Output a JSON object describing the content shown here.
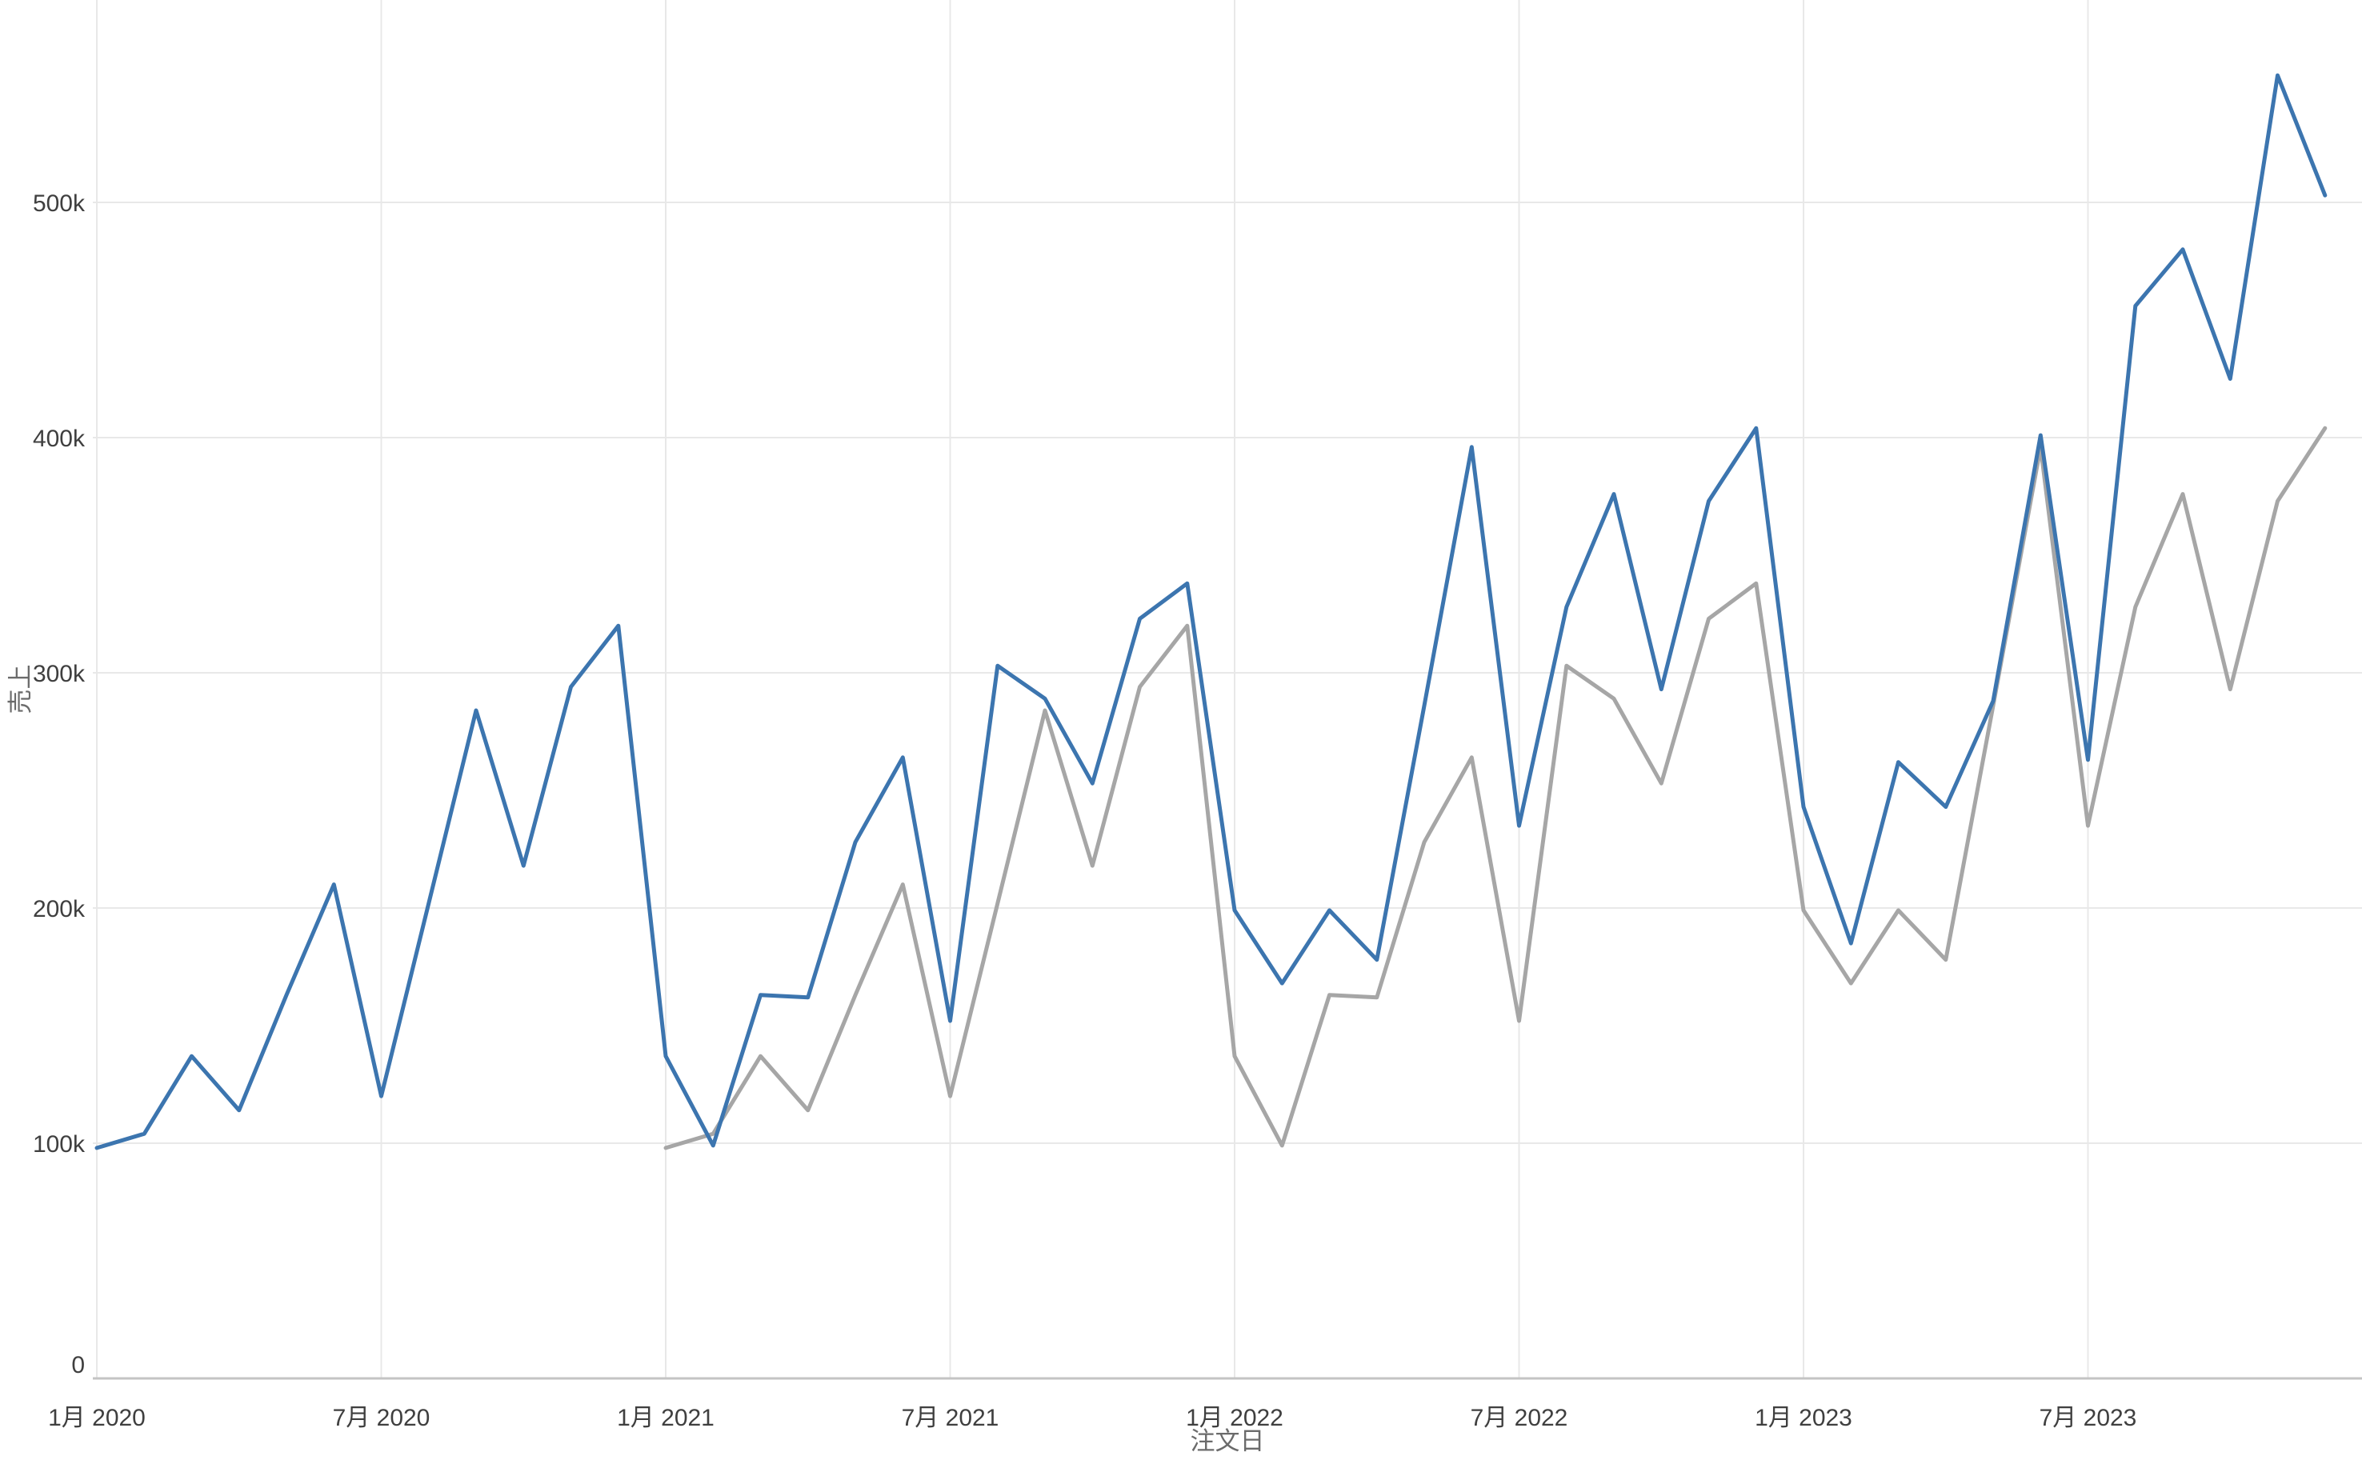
{
  "chart_data": {
    "type": "line",
    "unit": "thousands (k)",
    "title": "",
    "xlabel": "注文日",
    "ylabel": "売上",
    "grid": true,
    "legend": "none",
    "ylim_k": [
      0,
      566
    ],
    "x_months": [
      "2020-01",
      "2020-02",
      "2020-03",
      "2020-04",
      "2020-05",
      "2020-06",
      "2020-07",
      "2020-08",
      "2020-09",
      "2020-10",
      "2020-11",
      "2020-12",
      "2021-01",
      "2021-02",
      "2021-03",
      "2021-04",
      "2021-05",
      "2021-06",
      "2021-07",
      "2021-08",
      "2021-09",
      "2021-10",
      "2021-11",
      "2021-12",
      "2022-01",
      "2022-02",
      "2022-03",
      "2022-04",
      "2022-05",
      "2022-06",
      "2022-07",
      "2022-08",
      "2022-09",
      "2022-10",
      "2022-11",
      "2022-12",
      "2023-01",
      "2023-02",
      "2023-03",
      "2023-04",
      "2023-05",
      "2023-06",
      "2023-07",
      "2023-08",
      "2023-09",
      "2023-10",
      "2023-11",
      "2023-12"
    ],
    "y_ticks": [
      {
        "value_k": 0,
        "label": "0"
      },
      {
        "value_k": 100,
        "label": "100k"
      },
      {
        "value_k": 200,
        "label": "200k"
      },
      {
        "value_k": 300,
        "label": "300k"
      },
      {
        "value_k": 400,
        "label": "400k"
      },
      {
        "value_k": 500,
        "label": "500k"
      }
    ],
    "x_ticks": [
      {
        "month_index": 0,
        "label": "1月 2020"
      },
      {
        "month_index": 6,
        "label": "7月 2020"
      },
      {
        "month_index": 12,
        "label": "1月 2021"
      },
      {
        "month_index": 18,
        "label": "7月 2021"
      },
      {
        "month_index": 24,
        "label": "1月 2022"
      },
      {
        "month_index": 30,
        "label": "7月 2022"
      },
      {
        "month_index": 36,
        "label": "1月 2023"
      },
      {
        "month_index": 42,
        "label": "7月 2023"
      }
    ],
    "series": [
      {
        "name": "gray",
        "description": "previous-year sales (same series lagged 12 months)",
        "color": "#a6a6a6",
        "start_month_index": 12,
        "values_k": [
          98,
          104,
          137,
          114,
          163,
          210,
          120,
          202,
          284,
          218,
          294,
          320,
          137,
          99,
          163,
          162,
          228,
          264,
          152,
          303,
          289,
          253,
          323,
          338,
          199,
          168,
          199,
          178,
          286,
          396,
          235,
          328,
          376,
          293,
          373,
          404
        ]
      },
      {
        "name": "blue",
        "description": "sales by month",
        "color": "#3c75af",
        "start_month_index": 0,
        "values_k": [
          98,
          104,
          137,
          114,
          163,
          210,
          120,
          202,
          284,
          218,
          294,
          320,
          137,
          99,
          163,
          162,
          228,
          264,
          152,
          303,
          289,
          253,
          323,
          338,
          199,
          168,
          199,
          178,
          286,
          396,
          235,
          328,
          376,
          293,
          373,
          404,
          243,
          185,
          262,
          243,
          288,
          401,
          263,
          456,
          480,
          425,
          554,
          503
        ]
      }
    ]
  },
  "colors": {
    "background": "#ffffff",
    "gridline": "#e8e8e8",
    "axis_line": "#c4c4c4",
    "tick_label": "#3f3f3f",
    "axis_title": "#6b6b6b",
    "series_blue": "#3c75af",
    "series_gray": "#a6a6a6"
  }
}
